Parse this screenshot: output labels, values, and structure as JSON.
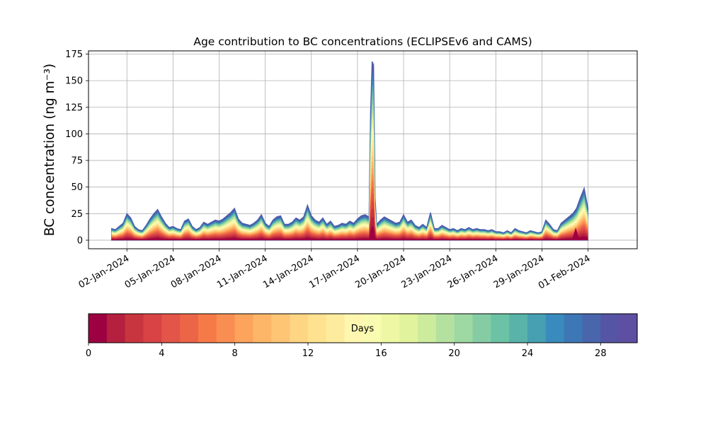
{
  "chart_data": {
    "type": "area",
    "title": "Age contribution to BC concentrations (ECLIPSEv6 and CAMS)",
    "ylabel": "BC concentration (ng m⁻³)",
    "xlabel": "",
    "ylim": [
      -8,
      178
    ],
    "yticks": [
      0,
      25,
      50,
      75,
      100,
      125,
      150,
      175
    ],
    "x_range_days": [
      -2.5,
      33.2
    ],
    "xticks": [
      {
        "day": 0,
        "label": "02-Jan-2024"
      },
      {
        "day": 3,
        "label": "05-Jan-2024"
      },
      {
        "day": 6,
        "label": "08-Jan-2024"
      },
      {
        "day": 9,
        "label": "11-Jan-2024"
      },
      {
        "day": 12,
        "label": "14-Jan-2024"
      },
      {
        "day": 15,
        "label": "17-Jan-2024"
      },
      {
        "day": 18,
        "label": "20-Jan-2024"
      },
      {
        "day": 21,
        "label": "23-Jan-2024"
      },
      {
        "day": 24,
        "label": "26-Jan-2024"
      },
      {
        "day": 27,
        "label": "29-Jan-2024"
      },
      {
        "day": 30,
        "label": "01-Feb-2024"
      }
    ],
    "grid": true,
    "total_series": {
      "day": [
        -1.0,
        -0.75,
        -0.5,
        -0.25,
        0.0,
        0.25,
        0.5,
        0.75,
        1.0,
        1.25,
        1.5,
        1.75,
        2.0,
        2.25,
        2.5,
        2.75,
        3.0,
        3.25,
        3.5,
        3.75,
        4.0,
        4.25,
        4.5,
        4.75,
        5.0,
        5.25,
        5.5,
        5.75,
        6.0,
        6.25,
        6.5,
        6.75,
        7.0,
        7.25,
        7.5,
        7.75,
        8.0,
        8.25,
        8.5,
        8.75,
        9.0,
        9.25,
        9.5,
        9.75,
        10.0,
        10.25,
        10.5,
        10.75,
        11.0,
        11.25,
        11.5,
        11.75,
        12.0,
        12.25,
        12.5,
        12.75,
        13.0,
        13.25,
        13.5,
        13.75,
        14.0,
        14.25,
        14.5,
        14.75,
        15.0,
        15.25,
        15.5,
        15.75,
        15.85,
        15.95,
        16.05,
        16.15,
        16.25,
        16.5,
        16.75,
        17.0,
        17.25,
        17.5,
        17.75,
        18.0,
        18.25,
        18.5,
        18.75,
        19.0,
        19.25,
        19.5,
        19.75,
        20.0,
        20.25,
        20.5,
        20.75,
        21.0,
        21.25,
        21.5,
        21.75,
        22.0,
        22.25,
        22.5,
        22.75,
        23.0,
        23.25,
        23.5,
        23.75,
        24.0,
        24.25,
        24.5,
        24.75,
        25.0,
        25.25,
        25.5,
        25.75,
        26.0,
        26.25,
        26.5,
        26.75,
        27.0,
        27.25,
        27.5,
        27.75,
        28.0,
        28.25,
        28.5,
        28.75,
        29.0,
        29.25,
        29.5,
        29.75,
        30.0
      ],
      "value": [
        11,
        10,
        13,
        16,
        25,
        21,
        13,
        10,
        9,
        14,
        20,
        25,
        29,
        22,
        16,
        12,
        13,
        11,
        10,
        18,
        20,
        13,
        10,
        12,
        17,
        15,
        17,
        19,
        18,
        20,
        23,
        26,
        30,
        20,
        16,
        15,
        14,
        16,
        19,
        24,
        16,
        13,
        19,
        22,
        23,
        15,
        15,
        17,
        21,
        19,
        22,
        33,
        23,
        19,
        17,
        21,
        15,
        18,
        13,
        14,
        16,
        15,
        18,
        16,
        20,
        23,
        24,
        22,
        120,
        168,
        165,
        40,
        15,
        19,
        22,
        20,
        18,
        16,
        17,
        24,
        17,
        19,
        14,
        12,
        15,
        12,
        26,
        11,
        11,
        14,
        12,
        10,
        11,
        9,
        11,
        10,
        12,
        10,
        11,
        10,
        10,
        9,
        10,
        8,
        8,
        7,
        9,
        7,
        11,
        9,
        8,
        7,
        9,
        8,
        7,
        8,
        19,
        15,
        10,
        9,
        16,
        19,
        22,
        25,
        30,
        40,
        49,
        30
      ]
    },
    "colorbar": {
      "label": "Days",
      "min": 0,
      "max": 30,
      "ticks": [
        0,
        4,
        8,
        12,
        16,
        20,
        24,
        28
      ],
      "colors": [
        "#9e0142",
        "#b5203f",
        "#c9353e",
        "#d94345",
        "#e25548",
        "#ec6546",
        "#f67a48",
        "#f98e52",
        "#fca35c",
        "#fdb667",
        "#fec575",
        "#fed583",
        "#fee28f",
        "#feec9e",
        "#fff7b0",
        "#f8fbb0",
        "#eef8a4",
        "#e1f39c",
        "#cdeb9d",
        "#b5e1a0",
        "#9ed8a3",
        "#85cca5",
        "#6cc2a4",
        "#59b3a8",
        "#46a0b1",
        "#3a8bbd",
        "#3e77b6",
        "#4966ad",
        "#5654a4",
        "#5e4fa2"
      ]
    }
  }
}
